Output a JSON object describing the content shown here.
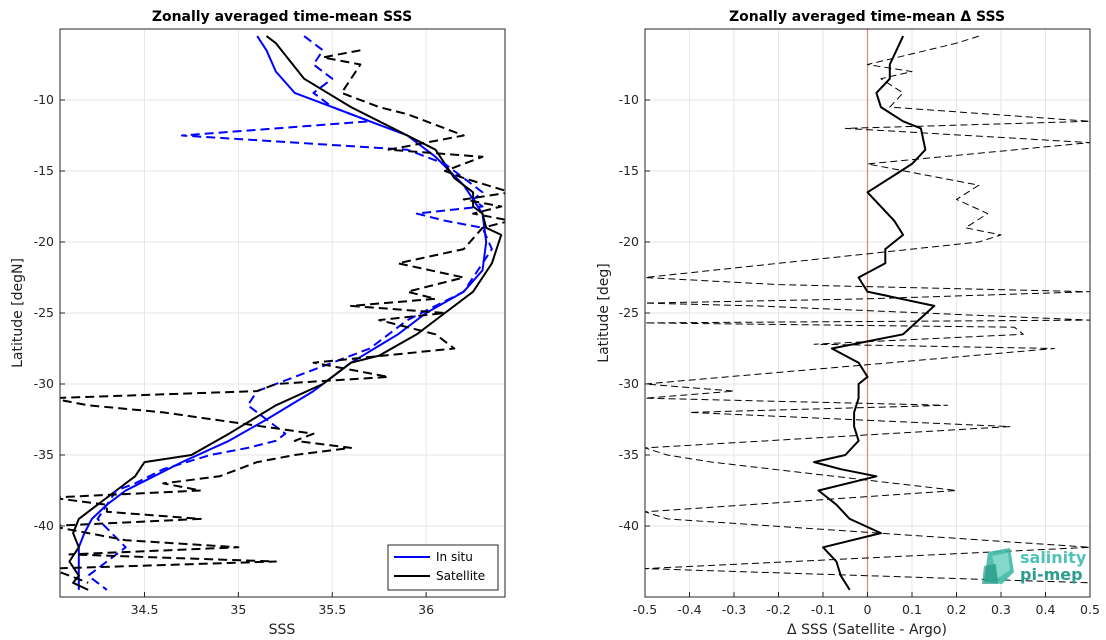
{
  "chart_data": [
    {
      "type": "line",
      "title": "Zonally averaged time-mean SSS",
      "xlabel": "SSS",
      "ylabel": "Latitude [degN]",
      "xlim": [
        34.05,
        36.42
      ],
      "ylim": [
        -45,
        -5
      ],
      "xticks": [
        34.5,
        35,
        35.5,
        36
      ],
      "xtick_labels": [
        "34.5",
        "35",
        "35.5",
        "36"
      ],
      "yticks": [
        -10,
        -15,
        -20,
        -25,
        -30,
        -35,
        -40
      ],
      "ytick_labels": [
        "-10",
        "-15",
        "-20",
        "-25",
        "-30",
        "-35",
        "-40"
      ],
      "grid": true,
      "legend": "bottom-right",
      "series": [
        {
          "name": "In situ",
          "color": "#0000ff",
          "style": "solid",
          "width": 2,
          "x": [
            35.1,
            35.15,
            35.2,
            35.3,
            35.5,
            35.7,
            35.9,
            36.05,
            36.2,
            36.25,
            36.3,
            36.32,
            36.3,
            36.2,
            36.0,
            35.85,
            35.6,
            35.4,
            35.15,
            34.95,
            34.7,
            34.55,
            34.4,
            34.3,
            34.22,
            34.18,
            34.15,
            34.15,
            34.15
          ],
          "y": [
            -5.5,
            -6.5,
            -8,
            -9.5,
            -10.5,
            -11.5,
            -12.5,
            -14,
            -16,
            -17,
            -18,
            -20,
            -22,
            -23.5,
            -25,
            -26.5,
            -28.5,
            -30.5,
            -32.5,
            -34,
            -35.5,
            -36.5,
            -37.5,
            -38.5,
            -39.5,
            -40.5,
            -41.5,
            -43,
            -44.5
          ]
        },
        {
          "name": "Satellite",
          "color": "#000000",
          "style": "solid",
          "width": 2,
          "x": [
            35.15,
            35.2,
            35.35,
            35.6,
            35.75,
            35.9,
            36.05,
            36.15,
            36.25,
            36.25,
            36.3,
            36.32,
            36.4,
            36.35,
            36.25,
            36.1,
            35.95,
            35.75,
            35.6,
            35.45,
            35.2,
            34.95,
            34.75,
            34.5,
            34.45,
            34.35,
            34.25,
            34.15,
            34.12,
            34.15,
            34.1,
            34.15,
            34.12,
            34.2
          ],
          "y": [
            -5.5,
            -6,
            -8.5,
            -10.5,
            -11.5,
            -12.5,
            -13.5,
            -15.5,
            -16.5,
            -17.5,
            -18,
            -19,
            -19.5,
            -21.5,
            -23.5,
            -25,
            -26.5,
            -28,
            -28.5,
            -30,
            -31.5,
            -33.5,
            -35,
            -35.5,
            -36.5,
            -37.5,
            -38.5,
            -39.5,
            -40.5,
            -41.5,
            -42.5,
            -43.5,
            -44,
            -44.5
          ]
        },
        {
          "name": "",
          "color": "#0000ff",
          "style": "dashed",
          "width": 2,
          "x": [
            35.35,
            35.45,
            35.4,
            35.5,
            35.4,
            35.5,
            35.6,
            35.7,
            34.7,
            35.9,
            36.1,
            36.2,
            36.3,
            36.25,
            36.3,
            35.95,
            36.1,
            36.3,
            36.35,
            36.3,
            36.25,
            36.2,
            36.05,
            35.9,
            35.8,
            35.7,
            35.5,
            35.3,
            35.1,
            35.05,
            35.25,
            35.2,
            35.05,
            34.85,
            34.6,
            34.45,
            34.35,
            34.25,
            34.4,
            34.3,
            34.2,
            34.25,
            34.3
          ],
          "y": [
            -5.5,
            -6.5,
            -7.5,
            -8.5,
            -9.5,
            -10.5,
            -11,
            -11.5,
            -12.5,
            -13.5,
            -14.5,
            -15.5,
            -16.5,
            -17,
            -17.5,
            -18,
            -18.5,
            -19,
            -20.5,
            -21.5,
            -22.5,
            -23.5,
            -24.5,
            -25.5,
            -26.5,
            -27.5,
            -28.5,
            -29.5,
            -30.5,
            -31.5,
            -33.5,
            -34,
            -34.5,
            -35,
            -36,
            -37,
            -37.5,
            -39.5,
            -41.5,
            -42.5,
            -43.5,
            -44,
            -44.5
          ]
        },
        {
          "name": "",
          "color": "#000000",
          "style": "dashed",
          "width": 2,
          "x": [
            35.65,
            35.45,
            35.65,
            35.6,
            35.55,
            35.75,
            35.9,
            36.2,
            35.8,
            36.3,
            36.1,
            36.2,
            36.45,
            36.2,
            36.4,
            36.25,
            36.45,
            36.3,
            36.2,
            35.85,
            36.2,
            35.9,
            36.05,
            35.6,
            36.1,
            35.75,
            36.05,
            36.15,
            35.4,
            35.8,
            35.2,
            35.1,
            34.0,
            34.2,
            34.6,
            35.4,
            35.3,
            35.6,
            35.3,
            35.1,
            35.0,
            34.9,
            34.6,
            34.8,
            34.0,
            34.3,
            34.3,
            34.8,
            34.0,
            34.2,
            34.4,
            35.0,
            34.1,
            35.2,
            34.0,
            34.2
          ],
          "y": [
            -6.5,
            -7,
            -7.5,
            -8.5,
            -9.5,
            -10.5,
            -11,
            -12.5,
            -13.5,
            -14,
            -15,
            -15.5,
            -16.5,
            -17,
            -17.5,
            -18,
            -18.5,
            -19,
            -20.5,
            -21.5,
            -22.5,
            -23.5,
            -24,
            -24.5,
            -25,
            -25.5,
            -26.5,
            -27.5,
            -28.5,
            -29.5,
            -30,
            -30.5,
            -31,
            -31.5,
            -32,
            -33.5,
            -34,
            -34.5,
            -35,
            -35.5,
            -36,
            -36.5,
            -37,
            -37.5,
            -38,
            -38.5,
            -39,
            -39.5,
            -40,
            -40.5,
            -41,
            -41.5,
            -42,
            -42.5,
            -43,
            -44
          ]
        }
      ]
    },
    {
      "type": "line",
      "title": "Zonally averaged time-mean Δ SSS",
      "xlabel": "Δ SSS (Satellite - Argo)",
      "ylabel": "Latitude [deg]",
      "xlim": [
        -0.5,
        0.5
      ],
      "ylim": [
        -45,
        -5
      ],
      "xticks": [
        -0.5,
        -0.4,
        -0.3,
        -0.2,
        -0.1,
        0,
        0.1,
        0.2,
        0.3,
        0.4,
        0.5
      ],
      "xtick_labels": [
        "-0.5",
        "-0.4",
        "-0.3",
        "-0.2",
        "-0.1",
        "0",
        "0.1",
        "0.2",
        "0.3",
        "0.4",
        "0.5"
      ],
      "yticks": [
        -10,
        -15,
        -20,
        -25,
        -30,
        -35,
        -40
      ],
      "ytick_labels": [
        "-10",
        "-15",
        "-20",
        "-25",
        "-30",
        "-35",
        "-40"
      ],
      "grid": true,
      "reference_line": {
        "x": 0,
        "color": "#e58080"
      },
      "series": [
        {
          "name": "",
          "color": "#000000",
          "style": "solid",
          "width": 2,
          "x": [
            0.08,
            0.05,
            0.05,
            0.02,
            0.03,
            0.08,
            0.12,
            0.13,
            0.1,
            0.05,
            0.0,
            0.06,
            0.08,
            0.04,
            0.04,
            -0.02,
            -0.01,
            0.0,
            0.03,
            0.15,
            0.08,
            -0.08,
            -0.02,
            0.0,
            -0.02,
            -0.02,
            -0.03,
            -0.03,
            -0.02,
            -0.05,
            -0.12,
            -0.06,
            0.02,
            -0.11,
            -0.07,
            -0.04,
            0.03,
            -0.1,
            -0.07,
            -0.06,
            -0.04
          ],
          "y": [
            -5.5,
            -7.5,
            -8.5,
            -9.5,
            -10.5,
            -11.5,
            -12,
            -13.5,
            -14.5,
            -15.5,
            -16.5,
            -18.5,
            -19.5,
            -20.5,
            -21.5,
            -22.5,
            -23,
            -23.5,
            -23.7,
            -24.5,
            -26.5,
            -27.5,
            -28.5,
            -29.5,
            -30,
            -31,
            -32,
            -33,
            -34,
            -35,
            -35.5,
            -36,
            -36.5,
            -37.5,
            -38.5,
            -39.5,
            -40.5,
            -41.5,
            -42.5,
            -43.5,
            -44.5
          ]
        },
        {
          "name": "",
          "color": "#000000",
          "style": "dashed",
          "width": 1,
          "x": [
            0.25,
            0.2,
            0.0,
            0.1,
            0.03,
            0.08,
            0.05,
            0.5,
            -0.05,
            0.5,
            0.0,
            0.25,
            0.2,
            0.27,
            0.22,
            0.3,
            0.25,
            -0.5,
            -0.2,
            0.5,
            0.0,
            -0.5,
            -0.25,
            0.5,
            -0.5,
            0.33,
            0.35,
            -0.12,
            0.42,
            -0.5,
            -0.3,
            -0.5,
            0.18,
            -0.4,
            0.32,
            -0.5,
            -0.45,
            -0.35,
            0.2,
            -0.5,
            -0.45,
            0.5,
            -0.5,
            0.5
          ],
          "y": [
            -5.5,
            -6,
            -7.5,
            -8,
            -8.5,
            -9.5,
            -10.5,
            -11.5,
            -12,
            -13,
            -14.5,
            -16,
            -17,
            -18,
            -19,
            -19.5,
            -20,
            -22.5,
            -23,
            -23.5,
            -24,
            -24.3,
            -24.5,
            -25.5,
            -25.7,
            -26,
            -26.5,
            -27.2,
            -27.5,
            -30,
            -30.5,
            -31,
            -31.5,
            -32,
            -33,
            -34.5,
            -35,
            -35.5,
            -37.5,
            -39,
            -39.5,
            -41.5,
            -43,
            -44
          ]
        }
      ]
    }
  ],
  "legend": {
    "in_situ": "In situ",
    "satellite": "Satellite"
  },
  "logo": {
    "line1": "salinity",
    "line2": "pi-mep",
    "color1": "#4fc3b8",
    "color2": "#2e9d8f"
  }
}
